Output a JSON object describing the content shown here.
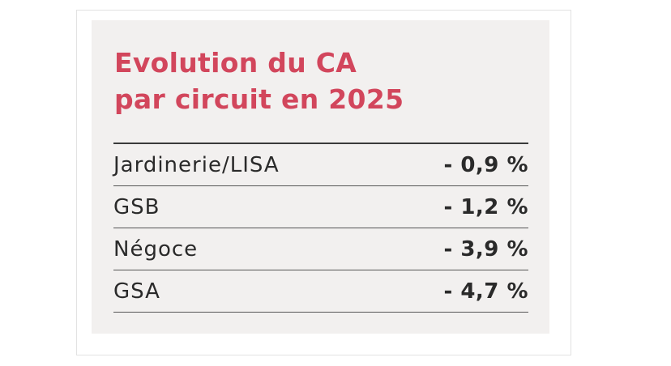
{
  "header": {
    "title_lines": [
      "Evolution du CA",
      "par circuit en 2025"
    ]
  },
  "table": {
    "rows": [
      [
        "Jardinerie/LISA",
        "- 0,9 %"
      ],
      [
        "GSB",
        "- 1,2 %"
      ],
      [
        "Négoce",
        "- 3,9 %"
      ],
      [
        "GSA",
        "- 4,7 %"
      ]
    ]
  }
}
